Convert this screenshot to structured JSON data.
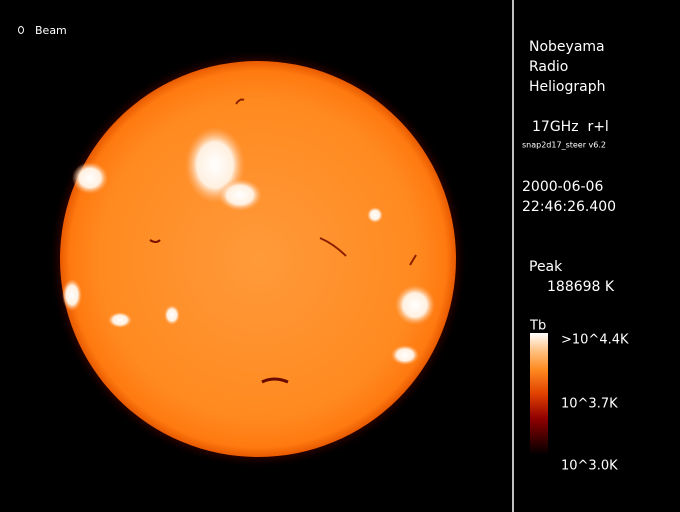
{
  "beam_label": "Beam",
  "observatory": [
    "Nobeyama",
    "Radio",
    "Heliograph"
  ],
  "frequency": "17GHz  r+l",
  "software": "snap2d17_steer v6.2",
  "date": "2000-06-06",
  "time": "22:46:26.400",
  "peak_label": "Peak",
  "peak_value": "188698 K",
  "colorbar": {
    "title": "Tb",
    "labels": [
      ">10^4.4K",
      "10^3.7K",
      "10^3.0K"
    ]
  }
}
